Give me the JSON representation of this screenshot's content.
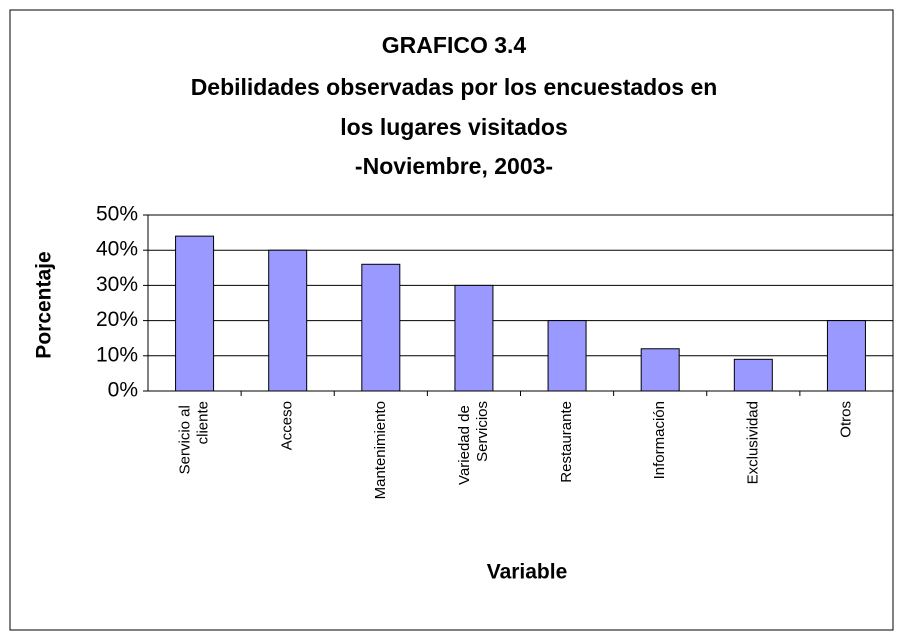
{
  "chart_data": {
    "type": "bar",
    "title": [
      "GRAFICO 3.4",
      "Debilidades observadas por los encuestados en",
      "los lugares visitados",
      "-Noviembre, 2003-"
    ],
    "ylabel": "Porcentaje",
    "xlabel": "Variable",
    "categories": [
      "Servicio al cliente",
      "Acceso",
      "Mantenimiento",
      "Variedad de Servicios",
      "Restaurante",
      "Información",
      "Exclusividad",
      "Otros"
    ],
    "values": [
      44,
      40,
      36,
      30,
      20,
      12,
      9,
      20
    ],
    "color": "#9999ff",
    "ylim": [
      0,
      50
    ],
    "yticks": [
      {
        "value": 0,
        "label": "0%"
      },
      {
        "value": 10,
        "label": "10%"
      },
      {
        "value": 20,
        "label": "20%"
      },
      {
        "value": 30,
        "label": "30%"
      },
      {
        "value": 40,
        "label": "40%"
      },
      {
        "value": 50,
        "label": "50%"
      }
    ],
    "grid": true
  }
}
